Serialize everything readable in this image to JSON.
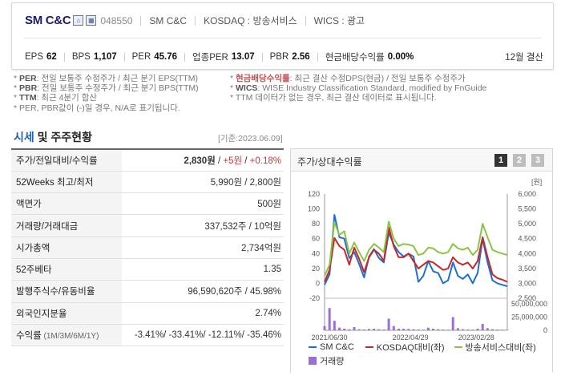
{
  "header": {
    "corp_name": "SM C&C",
    "code": "048550",
    "company": "SM C&C",
    "market": "KOSDAQ : 방송서비스",
    "wics": "WICS : 광고",
    "icons": [
      "home-icon",
      "building-icon"
    ]
  },
  "stats": {
    "eps_label": "EPS",
    "eps": "62",
    "bps_label": "BPS",
    "bps": "1,107",
    "per_label": "PER",
    "per": "45.76",
    "ind_per_label": "업종PER",
    "ind_per": "13.07",
    "pbr_label": "PBR",
    "pbr": "2.56",
    "div_label": "현금배당수익률",
    "div": "0.00%",
    "settle": "12월 결산"
  },
  "notes": {
    "left": [
      {
        "key": "PER",
        "text": ": 전일 보통주 수정주가 / 최근 분기 EPS(TTM)"
      },
      {
        "key": "PBR",
        "text": ": 전일 보통주 수정주가 / 최근 분기 BPS(TTM)"
      },
      {
        "key": "TTM",
        "text": ": 최근 4분기 합산"
      },
      {
        "key": "",
        "text": "PER, PBR값이 (-)일 경우, N/A로 표기됩니다."
      }
    ],
    "right": [
      {
        "key": "현금배당수익률",
        "text": ": 최근 결산 수정DPS(현금) / 전일 보통주 수정주가"
      },
      {
        "key": "WICS",
        "text": ": WISE Industry Classification Standard, modified by FnGuide"
      },
      {
        "key": "",
        "text": "TTM 데이터가 없는 경우, 최근 결산 데이터로 표시됩니다."
      }
    ]
  },
  "market_section": {
    "title_a": "시세",
    "title_b": " 및 주주현황",
    "ref_date": "[기준:2023.06.09]",
    "rows": [
      {
        "k": "주가/전일대비/수익률",
        "price": "2,830원",
        "chg": "+5원",
        "rate": "+0.18%"
      },
      {
        "k": "52Weeks 최고/최저",
        "v": "5,990원 / 2,800원"
      },
      {
        "k": "액면가",
        "v": "500원"
      },
      {
        "k": "거래량/거래대금",
        "v": "337,532주 / 10억원"
      },
      {
        "k": "시가총액",
        "v": "2,734억원"
      },
      {
        "k": "52주베타",
        "v": "1.35"
      },
      {
        "k": "발행주식수/유동비율",
        "v": "96,590,620주 / 45.98%"
      },
      {
        "k": "외국인지분율",
        "v": "2.74%"
      },
      {
        "k": "수익률",
        "k_small": " (1M/3M/6M/1Y)",
        "v": "-3.41%/ -33.41%/ -12.11%/ -35.46%"
      }
    ]
  },
  "chart_panel": {
    "title": "주가/상대수익률",
    "pages": [
      "1",
      "2",
      "3"
    ],
    "legend": [
      "SM C&C",
      "KOSDAQ대비(좌)",
      "방송서비스대비(좌)",
      "거래량"
    ],
    "colors": {
      "smcc": "#1f6fd1",
      "kosdaq": "#c62828",
      "broadcast": "#8bc34a",
      "volume": "#9c6fd6"
    }
  },
  "chart_data": {
    "type": "line",
    "x_ticks": [
      "2021/06/30",
      "2022/04/29",
      "2023/02/28"
    ],
    "left_axis": {
      "ticks": [
        "120",
        "100",
        "80",
        "60",
        "40",
        "20",
        "0",
        "-20"
      ],
      "ylim": [
        -20,
        120
      ]
    },
    "right_axis": {
      "unit": "[원]",
      "ticks": [
        "6,000",
        "5,500",
        "5,000",
        "4,500",
        "4,000",
        "3,500",
        "3,000",
        "2,500"
      ],
      "ylim": [
        2500,
        6000
      ]
    },
    "volume_axis": {
      "ticks": [
        "50,000,000",
        "25,000,000",
        "0"
      ],
      "ylim": [
        0,
        50000000
      ]
    },
    "series": [
      {
        "name": "SM C&C",
        "axis": "right",
        "values": [
          2950,
          3300,
          5300,
          4550,
          4500,
          3850,
          4050,
          3650,
          3200,
          3900,
          4150,
          3850,
          3700,
          4700,
          4300,
          4050,
          3900,
          4000,
          3900,
          3050,
          3250,
          3750,
          3400,
          3350,
          3000,
          3100,
          3700,
          3250,
          3150,
          3300,
          3000,
          3350,
          4500,
          3700,
          3100,
          3000,
          2950,
          2900
        ]
      },
      {
        "name": "KOSDAQ대비(좌)",
        "axis": "left",
        "values": [
          2,
          18,
          61,
          50,
          45,
          25,
          48,
          33,
          15,
          35,
          45,
          40,
          30,
          75,
          50,
          35,
          35,
          40,
          30,
          20,
          25,
          30,
          28,
          23,
          18,
          20,
          35,
          28,
          25,
          28,
          20,
          30,
          62,
          35,
          12,
          7,
          5,
          2
        ]
      },
      {
        "name": "방송서비스대비(좌)",
        "axis": "left",
        "values": [
          10,
          25,
          82,
          65,
          70,
          40,
          55,
          42,
          30,
          45,
          53,
          48,
          42,
          83,
          60,
          50,
          53,
          52,
          50,
          38,
          40,
          48,
          47,
          42,
          40,
          42,
          53,
          47,
          45,
          48,
          38,
          45,
          80,
          62,
          45,
          42,
          40,
          38
        ]
      },
      {
        "name": "거래량",
        "axis": "volume",
        "values": [
          8000000,
          42000000,
          18000000,
          5000000,
          3000000,
          2000000,
          6000000,
          2000000,
          1500000,
          2500000,
          3000000,
          2000000,
          1500000,
          22000000,
          8000000,
          3000000,
          3000000,
          2500000,
          2000000,
          1500000,
          1200000,
          5000000,
          3000000,
          2000000,
          1500000,
          1200000,
          25000000,
          4000000,
          2000000,
          1500000,
          1200000,
          3000000,
          12000000,
          4000000,
          2000000,
          1500000,
          1200000,
          1000000
        ]
      }
    ]
  }
}
